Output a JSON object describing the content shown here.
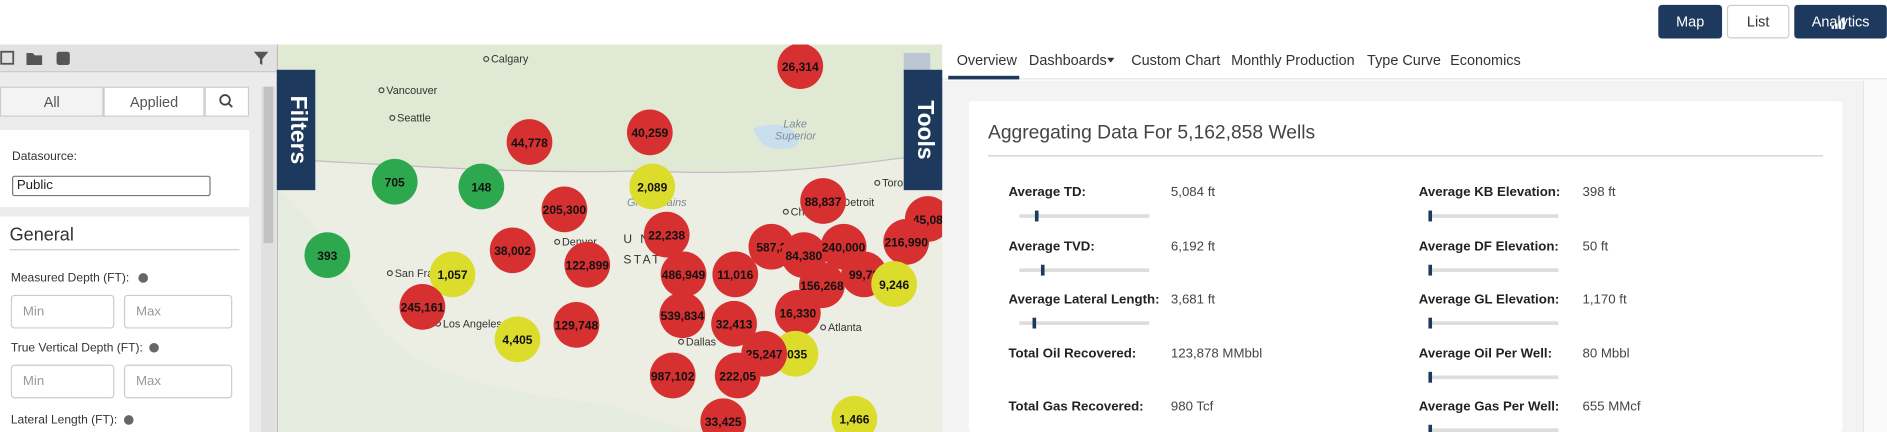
{
  "nav": {
    "buttons": [
      "Map",
      "List",
      "Analytics"
    ]
  },
  "sidebar": {
    "tabs": [
      "All",
      "Applied"
    ],
    "datasource": {
      "label": "Datasource:",
      "selected": "Public"
    },
    "section": "General",
    "fields": [
      {
        "label": "Measured Depth (FT):",
        "min": "Min",
        "max": "Max"
      },
      {
        "label": "True Vertical Depth (FT):",
        "min": "Min",
        "max": "Max"
      },
      {
        "label": "Lateral Length (FT):"
      }
    ]
  },
  "map": {
    "side_tabs": [
      "Filters",
      "Tools"
    ],
    "places": [
      "Calgary",
      "Vancouver",
      "Seattle",
      "San Fra",
      "Los Angeles",
      "Denver",
      "Dallas",
      "Atlanta",
      "Detroit",
      "Toro",
      "Chi",
      "Great Plains",
      "Lake",
      "Superior",
      "U N",
      "STAT"
    ],
    "clusters": [
      {
        "label": "26,314",
        "color": "#d63031"
      },
      {
        "label": "40,259",
        "color": "#d63031"
      },
      {
        "label": "44,778",
        "color": "#d63031"
      },
      {
        "label": "2,089",
        "color": "#dcdc2c"
      },
      {
        "label": "88,837",
        "color": "#d63031"
      },
      {
        "label": "45,08",
        "color": "#d63031"
      },
      {
        "label": "705",
        "color": "#2ea84f"
      },
      {
        "label": "148",
        "color": "#2ea84f"
      },
      {
        "label": "205,300",
        "color": "#d63031"
      },
      {
        "label": "22,238",
        "color": "#d63031"
      },
      {
        "label": "587,2",
        "color": "#d63031"
      },
      {
        "label": "84,380",
        "color": "#d63031"
      },
      {
        "label": "240,000",
        "color": "#d63031"
      },
      {
        "label": "216,990",
        "color": "#d63031"
      },
      {
        "label": "393",
        "color": "#2ea84f"
      },
      {
        "label": "38,002",
        "color": "#d63031"
      },
      {
        "label": "122,899",
        "color": "#d63031"
      },
      {
        "label": "486,949",
        "color": "#d63031"
      },
      {
        "label": "11,016",
        "color": "#d63031"
      },
      {
        "label": "99,73",
        "color": "#d63031"
      },
      {
        "label": "156,268",
        "color": "#d63031"
      },
      {
        "label": "9,246",
        "color": "#dcdc2c"
      },
      {
        "label": "1,057",
        "color": "#dcdc2c"
      },
      {
        "label": "245,161",
        "color": "#d63031"
      },
      {
        "label": "539,834",
        "color": "#d63031"
      },
      {
        "label": "32,413",
        "color": "#d63031"
      },
      {
        "label": "16,330",
        "color": "#d63031"
      },
      {
        "label": "129,748",
        "color": "#d63031"
      },
      {
        "label": "4,405",
        "color": "#dcdc2c"
      },
      {
        "label": ",035",
        "color": "#dcdc2c"
      },
      {
        "label": "25,247",
        "color": "#d63031"
      },
      {
        "label": "987,102",
        "color": "#d63031"
      },
      {
        "label": "222,05",
        "color": "#d63031"
      },
      {
        "label": "33,425",
        "color": "#d63031"
      },
      {
        "label": "1,466",
        "color": "#dcdc2c"
      }
    ]
  },
  "analytics": {
    "tabs": [
      "Overview",
      "Dashboards",
      "Custom Chart",
      "Monthly Production",
      "Type Curve",
      "Economics"
    ],
    "title": "Aggregating Data For 5,162,858 Wells",
    "stats": [
      {
        "label": "Average TD:",
        "value": "5,084 ft"
      },
      {
        "label": "Average TVD:",
        "value": "6,192 ft"
      },
      {
        "label": "Average Lateral Length:",
        "value": "3,681 ft"
      },
      {
        "label": "Total Oil Recovered:",
        "value": "123,878 MMbbl"
      },
      {
        "label": "Total Gas Recovered:",
        "value": "980 Tcf"
      },
      {
        "label": "Average KB Elevation:",
        "value": "398 ft"
      },
      {
        "label": "Average DF Elevation:",
        "value": "50 ft"
      },
      {
        "label": "Average GL Elevation:",
        "value": "1,170 ft"
      },
      {
        "label": "Average Oil Per Well:",
        "value": "80 Mbbl"
      },
      {
        "label": "Average Gas Per Well:",
        "value": "655 MMcf"
      }
    ]
  }
}
